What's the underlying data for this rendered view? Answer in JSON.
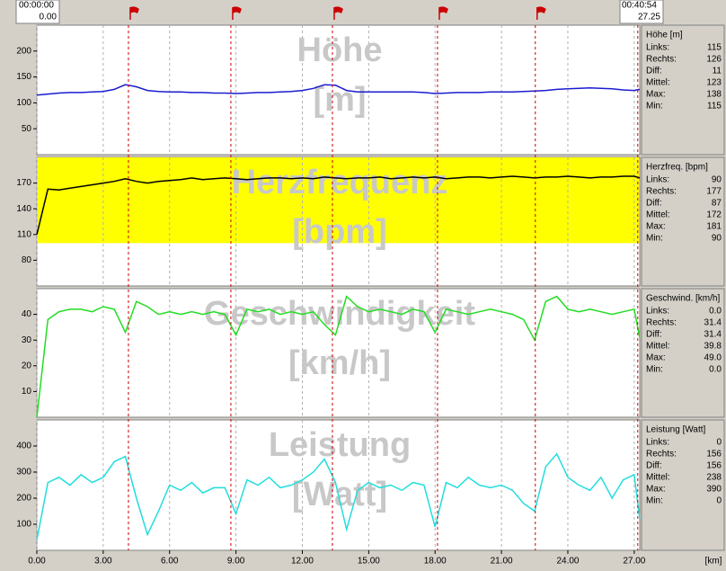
{
  "header": {
    "start_time": "00:00:00",
    "start_km": "0.00",
    "end_time": "00:40:54",
    "end_km": "27.25"
  },
  "x_axis": {
    "label": "[km]",
    "xlim": [
      0,
      27.25
    ],
    "grid": true,
    "ticks": [
      {
        "value": 0,
        "label": "0.00"
      },
      {
        "value": 3,
        "label": "3.00"
      },
      {
        "value": 6,
        "label": "6.00"
      },
      {
        "value": 9,
        "label": "9.00"
      },
      {
        "value": 12,
        "label": "12.00"
      },
      {
        "value": 15,
        "label": "15.00"
      },
      {
        "value": 18,
        "label": "18.00"
      },
      {
        "value": 21,
        "label": "21.00"
      },
      {
        "value": 24,
        "label": "24.00"
      },
      {
        "value": 27,
        "label": "27.00"
      }
    ],
    "laps": [
      4.14,
      8.77,
      13.36,
      18.11,
      22.53,
      27.16
    ],
    "lap_color": "#cc0000",
    "x": [
      0,
      0.5,
      1,
      1.5,
      2,
      2.5,
      3,
      3.5,
      4,
      4.5,
      5,
      5.5,
      6,
      6.5,
      7,
      7.5,
      8,
      8.5,
      9,
      9.5,
      10,
      10.5,
      11,
      11.5,
      12,
      12.5,
      13,
      13.5,
      14,
      14.5,
      15,
      15.5,
      16,
      16.5,
      17,
      17.5,
      18,
      18.5,
      19,
      19.5,
      20,
      20.5,
      21,
      21.5,
      22,
      22.5,
      23,
      23.5,
      24,
      24.5,
      25,
      25.5,
      26,
      26.5,
      27,
      27.25
    ]
  },
  "chart_data": [
    {
      "type": "line",
      "watermark": [
        "Höhe",
        "[m]"
      ],
      "ylim": [
        0,
        250
      ],
      "yticks": [
        50,
        100,
        150,
        200
      ],
      "series": [
        {
          "name": "Höhe [m]",
          "color": "#1c1cd0",
          "values": [
            115,
            117,
            119,
            120,
            120,
            121,
            122,
            126,
            135,
            131,
            124,
            122,
            121,
            121,
            120,
            120,
            119,
            119,
            118,
            119,
            120,
            120,
            121,
            122,
            124,
            128,
            135,
            134,
            124,
            121,
            121,
            121,
            121,
            121,
            121,
            120,
            118,
            119,
            120,
            120,
            120,
            121,
            121,
            121,
            122,
            123,
            124,
            126,
            127,
            128,
            129,
            128,
            127,
            125,
            124,
            126
          ]
        }
      ],
      "stats": [
        [
          "Links:",
          "115"
        ],
        [
          "Rechts:",
          "126"
        ],
        [
          "Diff:",
          "11"
        ],
        [
          "Mittel:",
          "123"
        ],
        [
          "Max:",
          "138"
        ],
        [
          "Min:",
          "115"
        ]
      ]
    },
    {
      "type": "line",
      "watermark": [
        "Herzfrequenz",
        "[bpm]"
      ],
      "ylim": [
        50,
        200
      ],
      "yticks": [
        80,
        110,
        140,
        170
      ],
      "zone": [
        100,
        200
      ],
      "zone_color": "#ffff00",
      "series": [
        {
          "name": "Herzfreq. [bpm]",
          "color": "#000000",
          "values": [
            110,
            163,
            162,
            164,
            166,
            168,
            170,
            172,
            175,
            172,
            170,
            172,
            173,
            174,
            176,
            174,
            175,
            176,
            175,
            174,
            175,
            176,
            176,
            175,
            176,
            175,
            177,
            176,
            175,
            176,
            176,
            177,
            175,
            176,
            177,
            176,
            177,
            175,
            176,
            177,
            177,
            176,
            177,
            178,
            177,
            176,
            177,
            177,
            178,
            177,
            176,
            177,
            177,
            178,
            178,
            176
          ]
        }
      ],
      "stats": [
        [
          "Links:",
          "90"
        ],
        [
          "Rechts:",
          "177"
        ],
        [
          "Diff:",
          "87"
        ],
        [
          "Mittel:",
          "172"
        ],
        [
          "Max:",
          "181"
        ],
        [
          "Min:",
          "90"
        ]
      ]
    },
    {
      "type": "line",
      "watermark": [
        "Geschwindigkeit",
        "[km/h]"
      ],
      "ylim": [
        0,
        50
      ],
      "yticks": [
        10,
        20,
        30,
        40
      ],
      "series": [
        {
          "name": "Geschwind. [km/h]",
          "color": "#22dd22",
          "values": [
            0,
            38,
            41,
            42,
            42,
            41,
            43,
            42,
            33,
            45,
            43,
            40,
            41,
            40,
            41,
            40,
            41,
            40,
            32,
            42,
            41,
            42,
            40,
            41,
            40,
            41,
            36,
            32,
            47,
            43,
            41,
            42,
            41,
            40,
            42,
            41,
            33,
            42,
            41,
            40,
            41,
            42,
            41,
            40,
            38,
            30,
            45,
            47,
            42,
            41,
            42,
            41,
            40,
            41,
            42,
            31
          ]
        }
      ],
      "stats": [
        [
          "Links:",
          "0.0"
        ],
        [
          "Rechts:",
          "31.4"
        ],
        [
          "Diff:",
          "31.4"
        ],
        [
          "Mittel:",
          "39.8"
        ],
        [
          "Max:",
          "49.0"
        ],
        [
          "Min:",
          "0.0"
        ]
      ]
    },
    {
      "type": "line",
      "watermark": [
        "Leistung",
        "[Watt]"
      ],
      "ylim": [
        0,
        500
      ],
      "yticks": [
        100,
        200,
        300,
        400
      ],
      "series": [
        {
          "name": "Leistung [Watt]",
          "color": "#22dddd",
          "values": [
            40,
            260,
            280,
            250,
            290,
            260,
            280,
            340,
            360,
            200,
            60,
            150,
            250,
            230,
            260,
            220,
            240,
            240,
            140,
            270,
            250,
            280,
            240,
            250,
            270,
            300,
            350,
            260,
            80,
            230,
            260,
            240,
            250,
            230,
            260,
            250,
            90,
            260,
            240,
            280,
            250,
            240,
            250,
            230,
            180,
            150,
            320,
            370,
            280,
            250,
            230,
            280,
            200,
            270,
            290,
            120
          ]
        }
      ],
      "stats": [
        [
          "Links:",
          "0"
        ],
        [
          "Rechts:",
          "156"
        ],
        [
          "Diff:",
          "156"
        ],
        [
          "Mittel:",
          "238"
        ],
        [
          "Max:",
          "390"
        ],
        [
          "Min:",
          "0"
        ]
      ]
    }
  ]
}
